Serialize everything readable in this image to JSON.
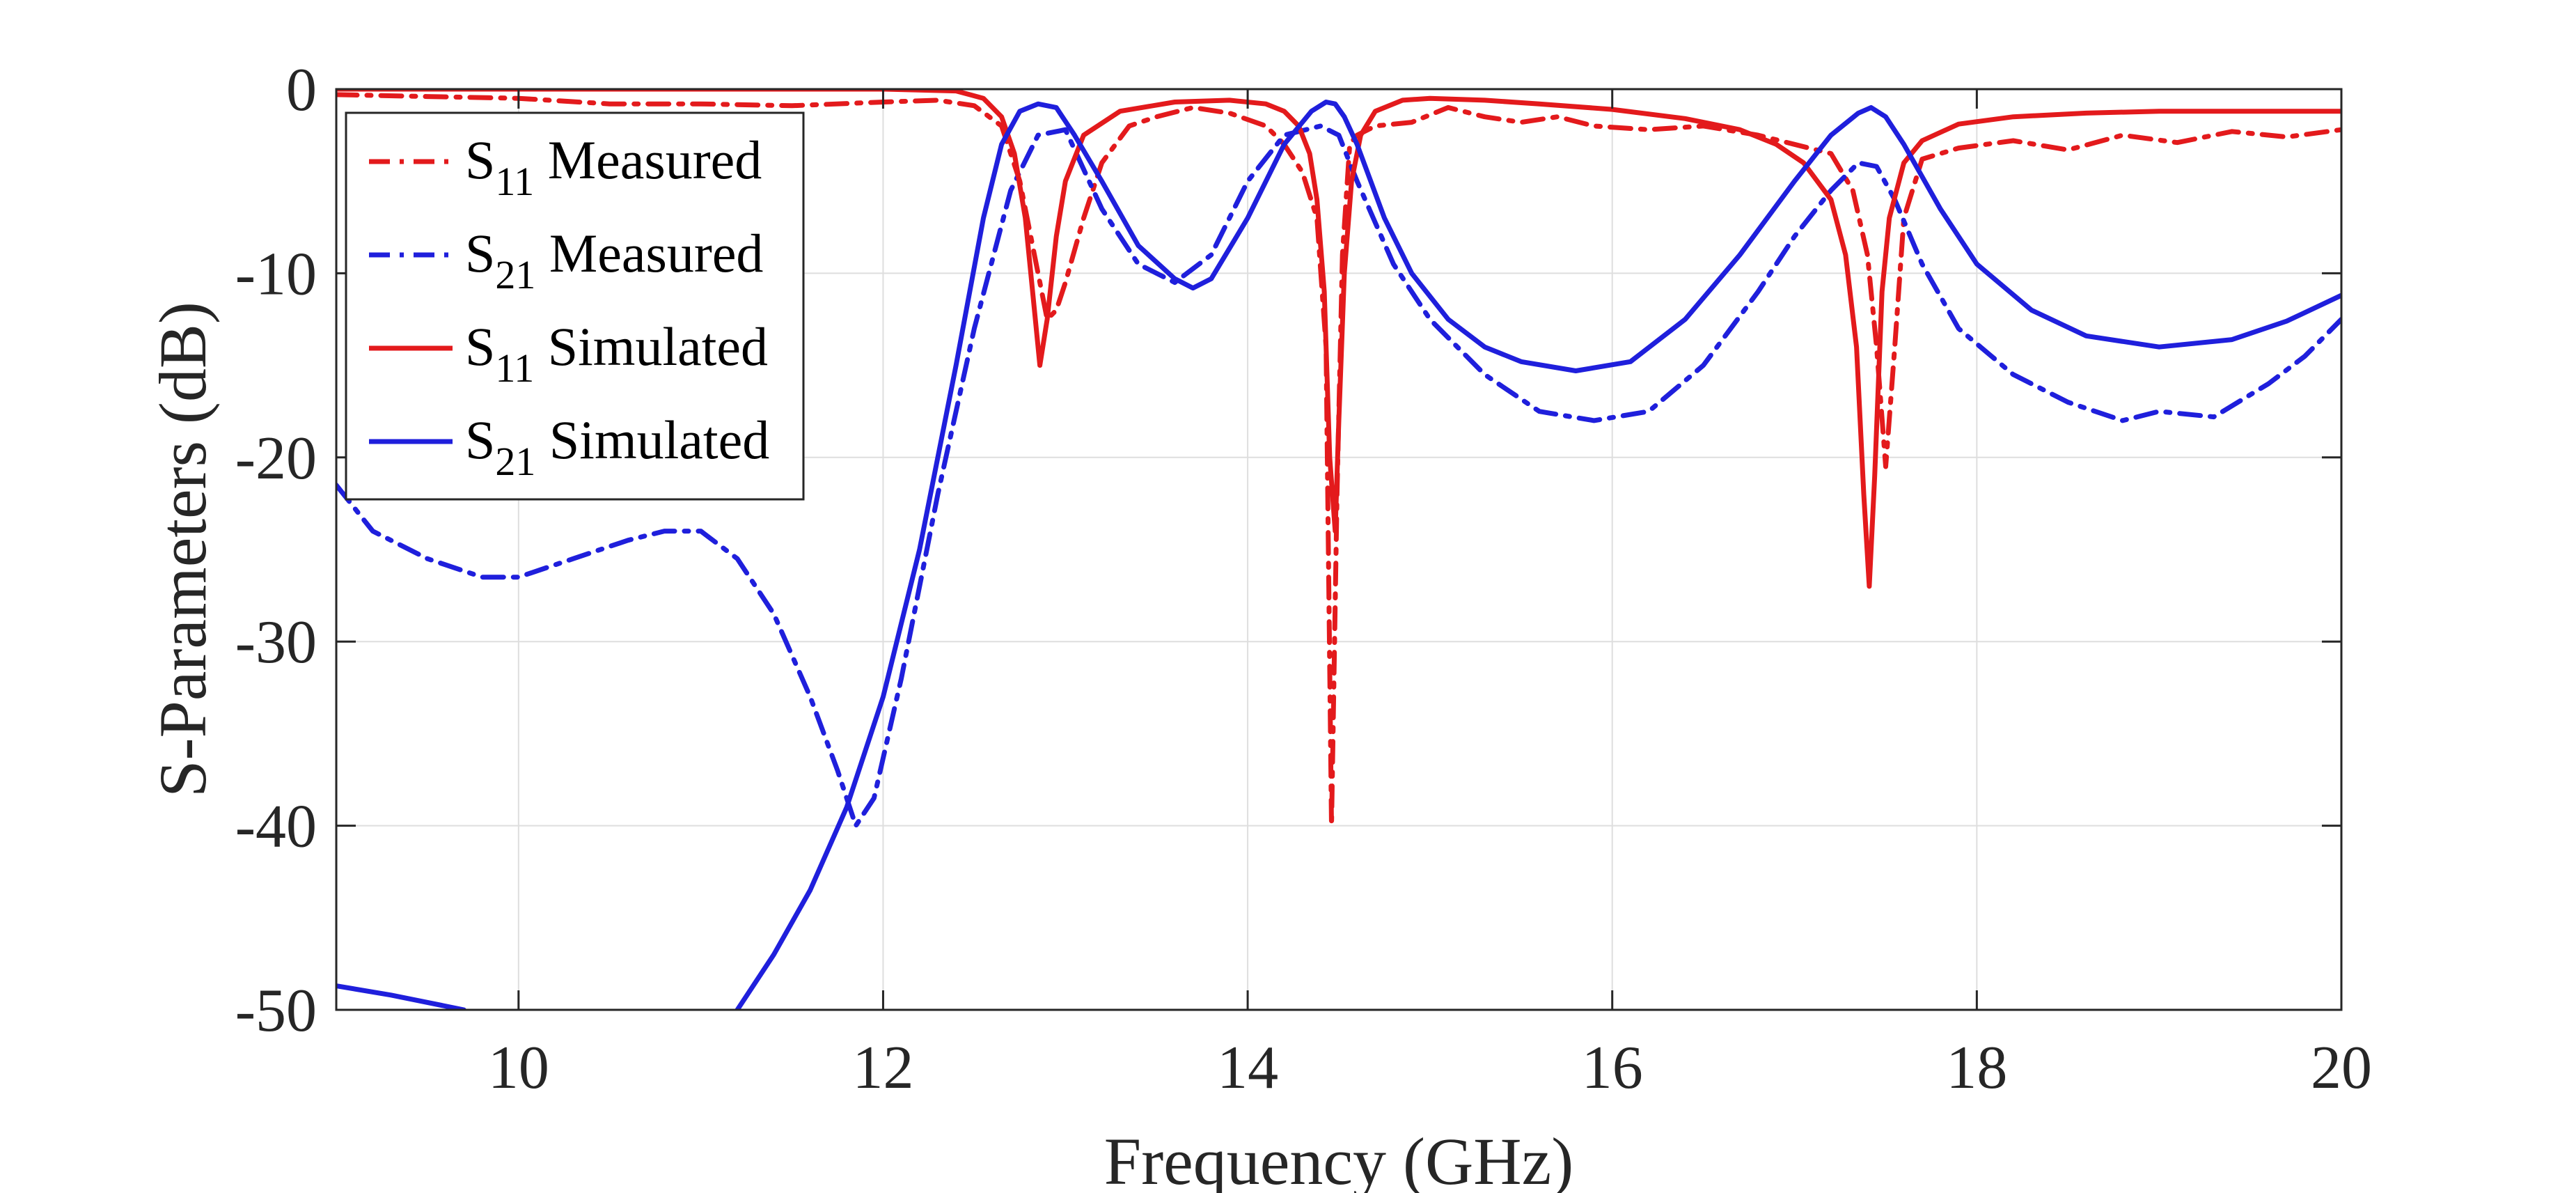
{
  "chart_data": {
    "type": "line",
    "title": "",
    "xlabel": "Frequency (GHz)",
    "ylabel": "S-Parameters (dB)",
    "xlim": [
      9,
      20
    ],
    "ylim": [
      -50,
      0
    ],
    "xticks": [
      10,
      12,
      14,
      16,
      18,
      20
    ],
    "yticks": [
      0,
      -10,
      -20,
      -30,
      -40,
      -50
    ],
    "xtick_labels": [
      "10",
      "12",
      "14",
      "16",
      "18",
      "20"
    ],
    "ytick_labels": [
      "0",
      "-10",
      "-20",
      "-30",
      "-40",
      "-50"
    ],
    "grid": true,
    "legend_position": "top-left",
    "series": [
      {
        "name": "S11 Measured",
        "legend_main": "S",
        "legend_sub": "11",
        "legend_suffix": " Measured",
        "color": "#e31a1c",
        "style": "dashdot",
        "x": [
          9.0,
          9.5,
          10.0,
          10.5,
          11.0,
          11.5,
          12.0,
          12.3,
          12.5,
          12.65,
          12.75,
          12.85,
          12.9,
          12.95,
          13.0,
          13.1,
          13.2,
          13.35,
          13.5,
          13.7,
          13.9,
          14.1,
          14.2,
          14.3,
          14.38,
          14.43,
          14.46,
          14.49,
          14.52,
          14.56,
          14.6,
          14.7,
          14.9,
          15.1,
          15.3,
          15.5,
          15.7,
          15.9,
          16.2,
          16.5,
          16.8,
          17.0,
          17.2,
          17.32,
          17.4,
          17.45,
          17.5,
          17.55,
          17.6,
          17.7,
          17.9,
          18.2,
          18.5,
          18.8,
          19.1,
          19.4,
          19.7,
          20.0
        ],
        "y": [
          -0.3,
          -0.4,
          -0.5,
          -0.8,
          -0.8,
          -0.9,
          -0.7,
          -0.6,
          -0.9,
          -2.0,
          -5.0,
          -10.0,
          -12.5,
          -12.0,
          -10.5,
          -7.0,
          -4.0,
          -2.0,
          -1.5,
          -1.0,
          -1.3,
          -2.0,
          -3.0,
          -4.5,
          -7.0,
          -14.0,
          -40.0,
          -22.0,
          -9.0,
          -3.0,
          -2.5,
          -2.0,
          -1.8,
          -1.0,
          -1.5,
          -1.8,
          -1.5,
          -2.0,
          -2.2,
          -2.0,
          -2.5,
          -3.0,
          -3.5,
          -5.5,
          -9.0,
          -14.0,
          -20.5,
          -14.0,
          -7.0,
          -3.8,
          -3.2,
          -2.8,
          -3.3,
          -2.5,
          -2.9,
          -2.3,
          -2.6,
          -2.2
        ]
      },
      {
        "name": "S21 Measured",
        "legend_main": "S",
        "legend_sub": "21",
        "legend_suffix": " Measured",
        "color": "#1f1fdc",
        "style": "dashdot",
        "x": [
          9.0,
          9.2,
          9.5,
          9.8,
          10.0,
          10.3,
          10.6,
          10.8,
          11.0,
          11.2,
          11.4,
          11.6,
          11.75,
          11.85,
          11.95,
          12.1,
          12.3,
          12.5,
          12.7,
          12.85,
          13.0,
          13.2,
          13.4,
          13.6,
          13.8,
          14.0,
          14.2,
          14.4,
          14.5,
          14.6,
          14.8,
          15.0,
          15.3,
          15.6,
          15.9,
          16.2,
          16.5,
          16.8,
          17.0,
          17.2,
          17.35,
          17.45,
          17.55,
          17.7,
          17.9,
          18.2,
          18.5,
          18.8,
          19.0,
          19.3,
          19.6,
          19.8,
          20.0
        ],
        "y": [
          -21.5,
          -24.0,
          -25.5,
          -26.5,
          -26.5,
          -25.5,
          -24.5,
          -24.0,
          -24.0,
          -25.5,
          -28.5,
          -33.0,
          -37.0,
          -40.0,
          -38.5,
          -32.0,
          -22.0,
          -13.0,
          -5.5,
          -2.5,
          -2.2,
          -6.5,
          -9.5,
          -10.5,
          -9.0,
          -5.0,
          -2.5,
          -2.0,
          -2.5,
          -5.0,
          -9.5,
          -12.5,
          -15.5,
          -17.5,
          -18.0,
          -17.5,
          -15.0,
          -11.0,
          -8.0,
          -5.5,
          -4.0,
          -4.2,
          -6.0,
          -9.5,
          -13.0,
          -15.5,
          -17.0,
          -18.0,
          -17.5,
          -17.8,
          -16.0,
          -14.5,
          -12.5
        ]
      },
      {
        "name": "S11 Simulated",
        "legend_main": "S",
        "legend_sub": "11",
        "legend_suffix": " Simulated",
        "color": "#e31a1c",
        "style": "solid",
        "x": [
          9.0,
          10.0,
          11.0,
          12.0,
          12.4,
          12.55,
          12.65,
          12.72,
          12.78,
          12.83,
          12.86,
          12.9,
          12.95,
          13.0,
          13.1,
          13.3,
          13.6,
          13.9,
          14.1,
          14.2,
          14.28,
          14.34,
          14.38,
          14.42,
          14.45,
          14.48,
          14.5,
          14.53,
          14.57,
          14.62,
          14.7,
          14.85,
          15.0,
          15.3,
          15.6,
          16.0,
          16.4,
          16.7,
          16.9,
          17.05,
          17.2,
          17.28,
          17.34,
          17.38,
          17.41,
          17.44,
          17.48,
          17.52,
          17.6,
          17.7,
          17.9,
          18.2,
          18.6,
          19.0,
          19.5,
          20.0
        ],
        "y": [
          0.0,
          0.0,
          0.0,
          0.0,
          -0.1,
          -0.5,
          -1.5,
          -3.5,
          -7.0,
          -12.0,
          -15.0,
          -12.5,
          -8.0,
          -5.0,
          -2.5,
          -1.2,
          -0.7,
          -0.6,
          -0.8,
          -1.2,
          -2.0,
          -3.5,
          -6.0,
          -11.0,
          -20.0,
          -24.0,
          -18.0,
          -10.0,
          -5.0,
          -2.5,
          -1.2,
          -0.6,
          -0.5,
          -0.6,
          -0.8,
          -1.1,
          -1.6,
          -2.2,
          -3.0,
          -4.0,
          -6.0,
          -9.0,
          -14.0,
          -22.0,
          -27.0,
          -21.0,
          -11.0,
          -7.0,
          -4.0,
          -2.8,
          -1.9,
          -1.5,
          -1.3,
          -1.2,
          -1.2,
          -1.2
        ]
      },
      {
        "name": "S21 Simulated",
        "legend_main": "S",
        "legend_sub": "21",
        "legend_suffix": " Simulated",
        "color": "#1f1fdc",
        "style": "solid",
        "segments": [
          {
            "x": [
              9.0,
              9.3,
              9.7
            ],
            "y": [
              -48.7,
              -49.2,
              -50.0
            ]
          },
          {
            "x": [
              11.2,
              11.4,
              11.6,
              11.8,
              12.0,
              12.2,
              12.4,
              12.55,
              12.65,
              12.75,
              12.85,
              12.95,
              13.05,
              13.2,
              13.4,
              13.6,
              13.7,
              13.8,
              14.0,
              14.2,
              14.35,
              14.43,
              14.48,
              14.53,
              14.6,
              14.75,
              14.9,
              15.1,
              15.3,
              15.5,
              15.8,
              16.1,
              16.4,
              16.7,
              17.0,
              17.2,
              17.35,
              17.42,
              17.5,
              17.6,
              17.8,
              18.0,
              18.3,
              18.6,
              19.0,
              19.4,
              19.7,
              20.0
            ],
            "y": [
              -50.0,
              -47.0,
              -43.5,
              -39.0,
              -33.0,
              -25.0,
              -15.0,
              -7.0,
              -3.0,
              -1.2,
              -0.8,
              -1.0,
              -2.5,
              -5.0,
              -8.5,
              -10.3,
              -10.8,
              -10.3,
              -7.0,
              -3.0,
              -1.2,
              -0.7,
              -0.8,
              -1.5,
              -3.0,
              -7.0,
              -10.0,
              -12.5,
              -14.0,
              -14.8,
              -15.3,
              -14.8,
              -12.5,
              -9.0,
              -5.0,
              -2.5,
              -1.3,
              -1.0,
              -1.5,
              -3.0,
              -6.5,
              -9.5,
              -12.0,
              -13.4,
              -14.0,
              -13.6,
              -12.6,
              -11.2
            ]
          }
        ]
      }
    ]
  }
}
